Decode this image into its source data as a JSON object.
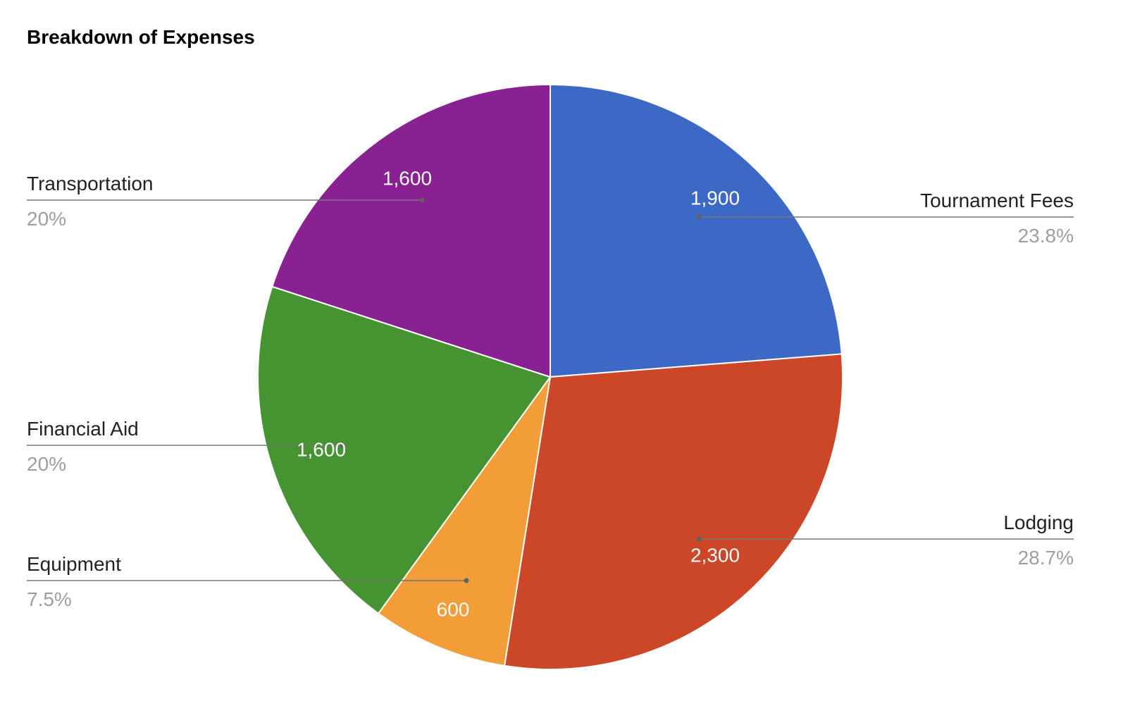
{
  "chart_data": {
    "type": "pie",
    "title": "Breakdown of Expenses",
    "slices": [
      {
        "label": "Tournament Fees",
        "value": 1900,
        "value_label": "1,900",
        "percent_label": "23.8%",
        "color": "#3c69c6"
      },
      {
        "label": "Lodging",
        "value": 2300,
        "value_label": "2,300",
        "percent_label": "28.7%",
        "color": "#cc4628"
      },
      {
        "label": "Equipment",
        "value": 600,
        "value_label": "600",
        "percent_label": "7.5%",
        "color": "#f29d38"
      },
      {
        "label": "Financial Aid",
        "value": 1600,
        "value_label": "1,600",
        "percent_label": "20%",
        "color": "#459331"
      },
      {
        "label": "Transportation",
        "value": 1600,
        "value_label": "1,600",
        "percent_label": "20%",
        "color": "#8a2192"
      }
    ],
    "legend": "callout-labels",
    "start_angle": "12 o'clock",
    "direction": "clockwise"
  }
}
